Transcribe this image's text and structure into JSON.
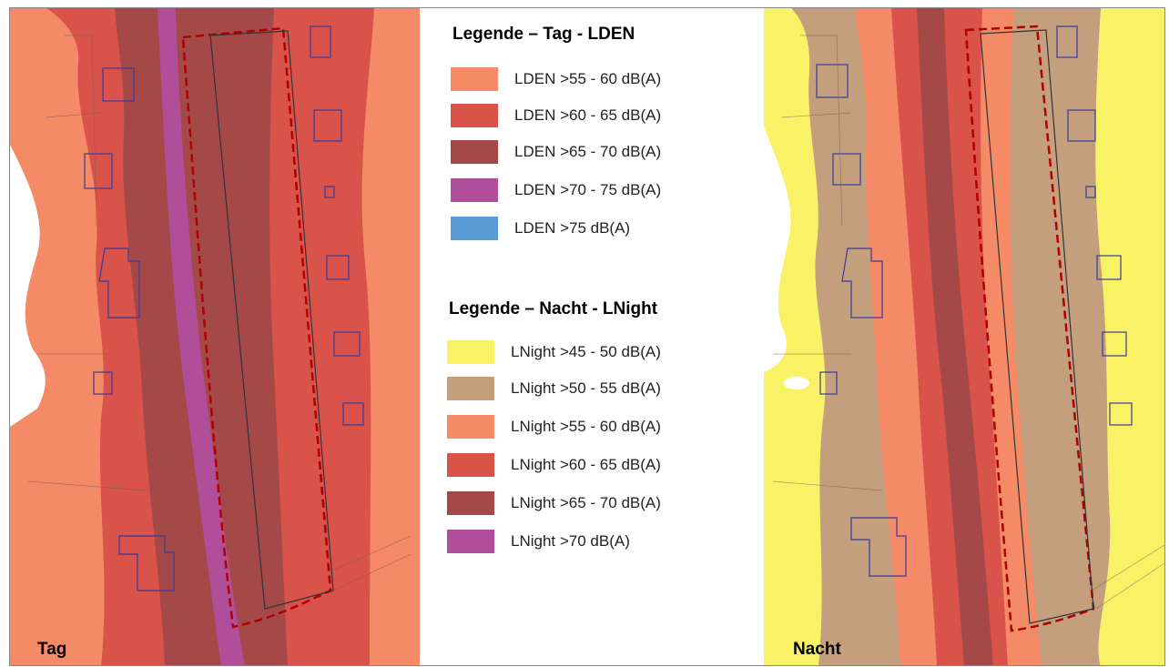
{
  "legend_day": {
    "title": "Legende – Tag - LDEN",
    "items": [
      {
        "label": "LDEN >55 - 60 dB(A)",
        "color": "#f58a66"
      },
      {
        "label": "LDEN >60 - 65 dB(A)",
        "color": "#d9534a"
      },
      {
        "label": "LDEN >65 - 70 dB(A)",
        "color": "#a54848"
      },
      {
        "label": "LDEN >70 - 75 dB(A)",
        "color": "#b04e9a"
      },
      {
        "label": "LDEN >75 dB(A)",
        "color": "#5b9bd5"
      }
    ]
  },
  "legend_night": {
    "title": "Legende – Nacht - LNight",
    "items": [
      {
        "label": "LNight >45 - 50 dB(A)",
        "color": "#faf266"
      },
      {
        "label": "LNight >50 - 55 dB(A)",
        "color": "#c39f7e"
      },
      {
        "label": "LNight >55 - 60 dB(A)",
        "color": "#f58a66"
      },
      {
        "label": "LNight >60 - 65 dB(A)",
        "color": "#d9534a"
      },
      {
        "label": "LNight >65 - 70 dB(A)",
        "color": "#a54848"
      },
      {
        "label": "LNight >70 dB(A)",
        "color": "#b04e9a"
      }
    ]
  },
  "maps": {
    "day_caption": "Tag",
    "night_caption": "Nacht"
  },
  "colors": {
    "day_band_1": "#f58a66",
    "day_band_2": "#d9534a",
    "day_band_3": "#a54848",
    "day_band_4": "#b04e9a",
    "night_band_0": "#faf266",
    "night_band_1": "#c39f7e",
    "night_band_2": "#f58a66",
    "night_band_3": "#d9534a",
    "night_band_4": "#a54848",
    "plan_boundary": "#b00000",
    "building_outline": "#3a3a9a"
  }
}
